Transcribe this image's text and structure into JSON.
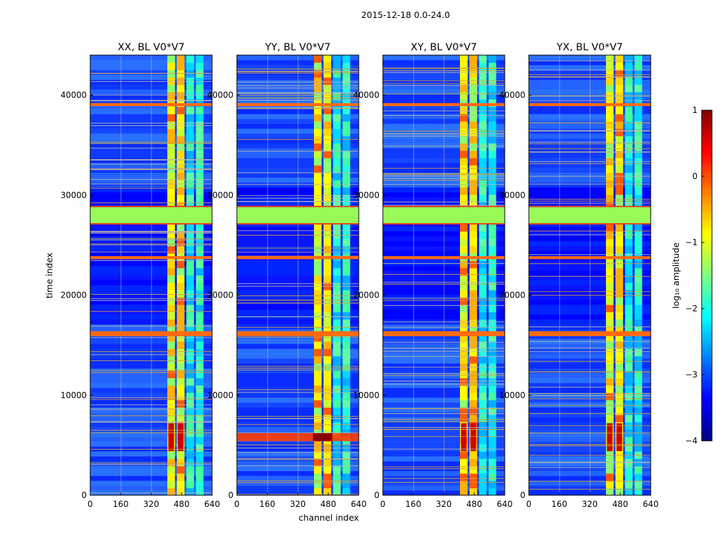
{
  "figure_title": "2015-12-18 0.0-24.0",
  "colors": {
    "band_red": "#e8431c",
    "band_orange": "#ff6a10",
    "band_green": "#98fb58",
    "line_gray": "#b7b7a8",
    "frame": "#000000"
  },
  "colormap": [
    "#00007f",
    "#0000ff",
    "#007fff",
    "#00ffff",
    "#7fff7f",
    "#ffff00",
    "#ff7f00",
    "#ff0000",
    "#7f0000"
  ],
  "chart_data": [
    {
      "type": "heatmap",
      "title": "XX, BL V0*V7",
      "pol": "XX",
      "xlabel": "",
      "ylabel": "time index",
      "xlim": [
        0,
        640
      ],
      "ylim": [
        0,
        44000
      ],
      "xticks": [
        0,
        160,
        320,
        480,
        640
      ],
      "yticks": [
        0,
        10000,
        20000,
        30000,
        40000
      ],
      "rfi_channel_bands": [
        [
          405,
          445
        ],
        [
          455,
          495
        ],
        [
          505,
          545
        ],
        [
          555,
          595
        ]
      ],
      "flagged_time_ranges": [
        [
          27200,
          28800
        ]
      ],
      "bright_time_bands": [
        [
          15900,
          16400
        ],
        [
          23600,
          23900
        ],
        [
          38900,
          39200
        ]
      ],
      "burst_time_ranges": [
        [
          4400,
          7200
        ]
      ]
    },
    {
      "type": "heatmap",
      "title": "YY, BL V0*V7",
      "pol": "YY",
      "xlabel": "channel index",
      "ylabel": "",
      "xlim": [
        0,
        640
      ],
      "ylim": [
        0,
        44000
      ],
      "xticks": [
        0,
        160,
        320,
        480,
        640
      ],
      "yticks": [
        0,
        10000,
        20000,
        30000,
        40000
      ],
      "rfi_channel_bands": [
        [
          405,
          445
        ],
        [
          455,
          495
        ],
        [
          505,
          545
        ],
        [
          555,
          595
        ]
      ],
      "flagged_time_ranges": [
        [
          27200,
          28800
        ]
      ],
      "bright_time_bands": [
        [
          15900,
          16400
        ],
        [
          23600,
          23900
        ],
        [
          38900,
          39200
        ]
      ],
      "burst_time_ranges": [
        [
          5400,
          6200
        ]
      ]
    },
    {
      "type": "heatmap",
      "title": "XY, BL V0*V7",
      "pol": "XY",
      "xlabel": "",
      "ylabel": "",
      "xlim": [
        0,
        640
      ],
      "ylim": [
        0,
        44000
      ],
      "xticks": [
        0,
        160,
        320,
        480,
        640
      ],
      "yticks": [
        0,
        10000,
        20000,
        30000,
        40000
      ],
      "rfi_channel_bands": [
        [
          405,
          445
        ],
        [
          455,
          495
        ],
        [
          505,
          545
        ],
        [
          555,
          595
        ]
      ],
      "flagged_time_ranges": [
        [
          27200,
          28800
        ]
      ],
      "bright_time_bands": [
        [
          15900,
          16400
        ],
        [
          23600,
          23900
        ],
        [
          38900,
          39200
        ]
      ],
      "burst_time_ranges": [
        [
          4400,
          7200
        ]
      ]
    },
    {
      "type": "heatmap",
      "title": "YX, BL V0*V7",
      "pol": "YX",
      "xlabel": "",
      "ylabel": "",
      "xlim": [
        0,
        640
      ],
      "ylim": [
        0,
        44000
      ],
      "xticks": [
        0,
        160,
        320,
        480,
        640
      ],
      "yticks": [
        0,
        10000,
        20000,
        30000,
        40000
      ],
      "rfi_channel_bands": [
        [
          405,
          445
        ],
        [
          455,
          495
        ],
        [
          505,
          545
        ],
        [
          555,
          595
        ]
      ],
      "flagged_time_ranges": [
        [
          27200,
          28800
        ]
      ],
      "bright_time_bands": [
        [
          15900,
          16400
        ],
        [
          23600,
          23900
        ],
        [
          38900,
          39200
        ]
      ],
      "burst_time_ranges": [
        [
          4400,
          7200
        ]
      ]
    }
  ],
  "colorbar": {
    "label": "log₁₀ amplitude",
    "range": [
      -4,
      1
    ],
    "ticks": [
      -4,
      -3,
      -2,
      -1,
      0,
      1
    ],
    "tick_labels": [
      "−4",
      "−3",
      "−2",
      "−1",
      "0",
      "1"
    ]
  }
}
